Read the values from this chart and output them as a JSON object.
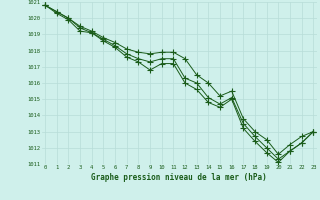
{
  "xlabel": "Graphe pression niveau de la mer (hPa)",
  "bg_color": "#cff0eb",
  "grid_color": "#b8ddd8",
  "line_color": "#1a5c1a",
  "marker": "+",
  "x": [
    0,
    1,
    2,
    3,
    4,
    5,
    6,
    7,
    8,
    9,
    10,
    11,
    12,
    13,
    14,
    15,
    16,
    17,
    18,
    19,
    20,
    21,
    22,
    23
  ],
  "line1": [
    1020.8,
    1020.4,
    1020.0,
    1019.5,
    1019.2,
    1018.8,
    1018.5,
    1018.1,
    1017.9,
    1017.8,
    1017.9,
    1017.9,
    1017.5,
    1016.5,
    1016.0,
    1015.2,
    1015.5,
    1013.8,
    1013.0,
    1012.5,
    1011.6,
    1012.2,
    1012.7,
    1013.0
  ],
  "line2": [
    1020.8,
    1020.4,
    1020.0,
    1019.4,
    1019.1,
    1018.7,
    1018.3,
    1017.8,
    1017.5,
    1017.3,
    1017.5,
    1017.5,
    1016.3,
    1016.0,
    1015.1,
    1014.7,
    1015.1,
    1013.5,
    1012.7,
    1012.0,
    1011.3,
    1011.8,
    1012.3,
    1013.0
  ],
  "line3": [
    1020.8,
    1020.3,
    1019.9,
    1019.2,
    1019.1,
    1018.6,
    1018.2,
    1017.6,
    1017.3,
    1016.8,
    1017.2,
    1017.2,
    1016.0,
    1015.6,
    1014.8,
    1014.5,
    1015.0,
    1013.2,
    1012.4,
    1011.7,
    1011.1,
    1011.8,
    1012.3,
    1013.0
  ],
  "ylim": [
    1011,
    1021
  ],
  "yticks": [
    1011,
    1012,
    1013,
    1014,
    1015,
    1016,
    1017,
    1018,
    1019,
    1020,
    1021
  ],
  "xticks": [
    0,
    1,
    2,
    3,
    4,
    5,
    6,
    7,
    8,
    9,
    10,
    11,
    12,
    13,
    14,
    15,
    16,
    17,
    18,
    19,
    20,
    21,
    22,
    23
  ],
  "xlim": [
    -0.3,
    23.3
  ]
}
